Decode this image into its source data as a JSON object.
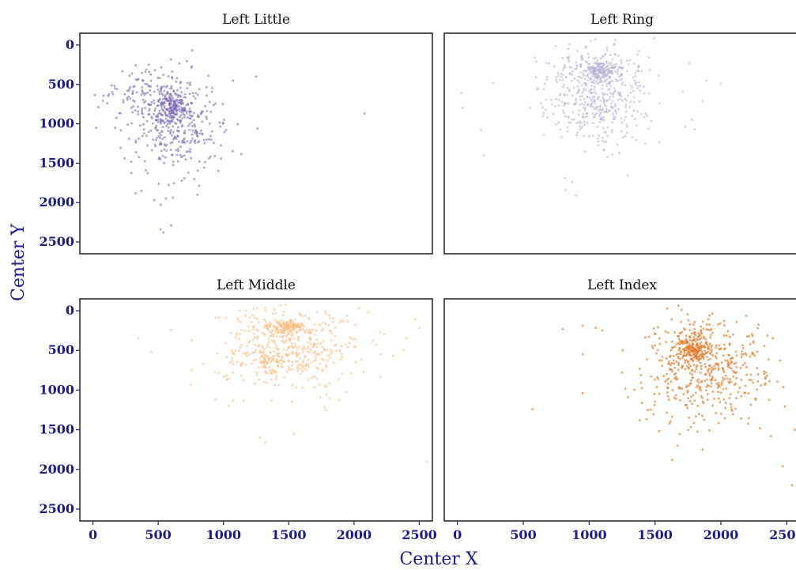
{
  "chart_data": {
    "type": "scatter",
    "xlabel": "Center X",
    "ylabel": "Center Y",
    "xlim": [
      -100,
      2600
    ],
    "ylim": [
      2650,
      -150
    ],
    "y_reversed": true,
    "xticks": [
      0,
      500,
      1000,
      1500,
      2000,
      2500
    ],
    "yticks": [
      0,
      500,
      1000,
      1500,
      2000,
      2500
    ],
    "grid": false,
    "panels": [
      {
        "title": "Left Little",
        "color": "#7b6bb0",
        "opacity": 0.6,
        "clusters": [
          {
            "cx": 620,
            "cy": 800,
            "sx": 60,
            "sy": 90,
            "n": 170
          },
          {
            "cx": 620,
            "cy": 980,
            "sx": 200,
            "sy": 330,
            "n": 380
          },
          {
            "cx": 400,
            "cy": 500,
            "sx": 140,
            "sy": 120,
            "n": 60
          }
        ],
        "points": [
          [
            2080,
            870
          ],
          [
            1260,
            1060
          ],
          [
            1250,
            400
          ],
          [
            170,
            1050
          ],
          [
            110,
            740
          ],
          [
            560,
            1950
          ],
          [
            540,
            2380
          ],
          [
            520,
            2340
          ],
          [
            600,
            2290
          ],
          [
            520,
            2030
          ],
          [
            470,
            1970
          ],
          [
            800,
            1900
          ]
        ]
      },
      {
        "title": "Left Ring",
        "color": "#b3aed6",
        "opacity": 0.55,
        "clusters": [
          {
            "cx": 1080,
            "cy": 330,
            "sx": 55,
            "sy": 60,
            "n": 130
          },
          {
            "cx": 1060,
            "cy": 650,
            "sx": 190,
            "sy": 310,
            "n": 450
          },
          {
            "cx": 1050,
            "cy": 300,
            "sx": 200,
            "sy": 90,
            "n": 70
          }
        ],
        "points": [
          [
            2000,
            490
          ],
          [
            1890,
            450
          ],
          [
            1860,
            710
          ],
          [
            1760,
            230
          ],
          [
            40,
            800
          ],
          [
            30,
            610
          ],
          [
            200,
            1400
          ],
          [
            180,
            1080
          ],
          [
            270,
            480
          ],
          [
            820,
            1840
          ],
          [
            870,
            1740
          ],
          [
            900,
            1910
          ],
          [
            1710,
            590
          ],
          [
            1780,
            950
          ],
          [
            1800,
            1070
          ]
        ]
      },
      {
        "title": "Left Middle",
        "color": "#fdbd7e",
        "opacity": 0.6,
        "clusters": [
          {
            "cx": 1480,
            "cy": 200,
            "sx": 70,
            "sy": 45,
            "n": 150
          },
          {
            "cx": 1500,
            "cy": 480,
            "sx": 280,
            "sy": 260,
            "n": 450
          },
          {
            "cx": 1350,
            "cy": 650,
            "sx": 40,
            "sy": 60,
            "n": 30
          }
        ],
        "points": [
          [
            2470,
            110
          ],
          [
            2560,
            1900
          ],
          [
            2500,
            220
          ],
          [
            350,
            350
          ],
          [
            450,
            520
          ],
          [
            600,
            240
          ],
          [
            750,
            930
          ],
          [
            1120,
            130
          ],
          [
            1280,
            1600
          ],
          [
            1320,
            1660
          ],
          [
            1540,
            1550
          ],
          [
            2200,
            270
          ],
          [
            2300,
            570
          ],
          [
            2400,
            350
          ]
        ]
      },
      {
        "title": "Left Index",
        "color": "#e07a28",
        "opacity": 0.65,
        "clusters": [
          {
            "cx": 1790,
            "cy": 500,
            "sx": 60,
            "sy": 80,
            "n": 170
          },
          {
            "cx": 1900,
            "cy": 760,
            "sx": 250,
            "sy": 320,
            "n": 430
          },
          {
            "cx": 1800,
            "cy": 300,
            "sx": 150,
            "sy": 80,
            "n": 50
          }
        ],
        "points": [
          [
            570,
            1240
          ],
          [
            950,
            1040
          ],
          [
            800,
            230
          ],
          [
            950,
            190
          ],
          [
            1100,
            250
          ],
          [
            950,
            550
          ],
          [
            1670,
            1700
          ],
          [
            1630,
            1880
          ],
          [
            1860,
            1750
          ],
          [
            2380,
            1580
          ],
          [
            2470,
            1960
          ],
          [
            2540,
            2200
          ],
          [
            2560,
            1500
          ],
          [
            1250,
            780
          ]
        ]
      }
    ]
  }
}
